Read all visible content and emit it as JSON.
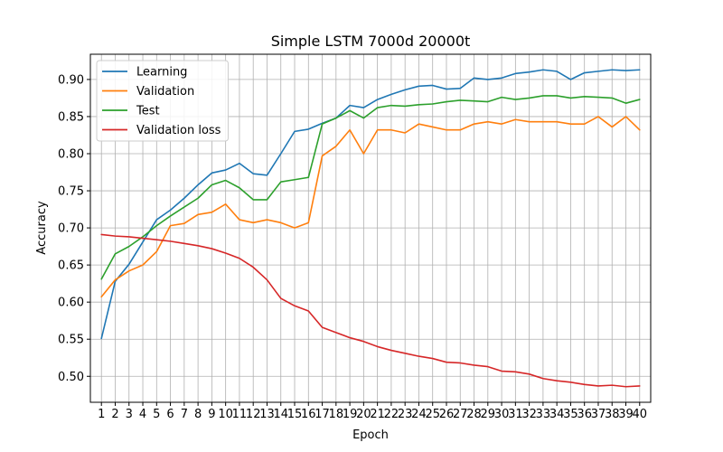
{
  "chart_data": {
    "type": "line",
    "title": "Simple LSTM 7000d 20000t",
    "xlabel": "Epoch",
    "ylabel": "Accuracy",
    "x": [
      1,
      2,
      3,
      4,
      5,
      6,
      7,
      8,
      9,
      10,
      11,
      12,
      13,
      14,
      15,
      16,
      17,
      18,
      19,
      20,
      21,
      22,
      23,
      24,
      25,
      26,
      27,
      28,
      29,
      30,
      31,
      32,
      33,
      34,
      35,
      36,
      37,
      38,
      39,
      40
    ],
    "xlim": [
      0.2,
      40.8
    ],
    "ylim": [
      0.465,
      0.934
    ],
    "yticks": [
      0.5,
      0.55,
      0.6,
      0.65,
      0.7,
      0.75,
      0.8,
      0.85,
      0.9
    ],
    "ytick_labels": [
      "0.50",
      "0.55",
      "0.60",
      "0.65",
      "0.70",
      "0.75",
      "0.80",
      "0.85",
      "0.90"
    ],
    "grid": true,
    "legend_position": "upper-left",
    "series": [
      {
        "name": "Learning",
        "color": "#1f77b4",
        "values": [
          0.551,
          0.628,
          0.651,
          0.681,
          0.711,
          0.724,
          0.74,
          0.758,
          0.774,
          0.778,
          0.787,
          0.773,
          0.771,
          0.8,
          0.83,
          0.833,
          0.841,
          0.848,
          0.865,
          0.862,
          0.873,
          0.88,
          0.886,
          0.891,
          0.892,
          0.887,
          0.888,
          0.902,
          0.9,
          0.902,
          0.908,
          0.91,
          0.913,
          0.911,
          0.9,
          0.909,
          0.911,
          0.913,
          0.912,
          0.913
        ]
      },
      {
        "name": "Validation",
        "color": "#ff7f0e",
        "values": [
          0.607,
          0.63,
          0.642,
          0.65,
          0.668,
          0.703,
          0.706,
          0.718,
          0.721,
          0.732,
          0.711,
          0.707,
          0.711,
          0.707,
          0.7,
          0.707,
          0.797,
          0.81,
          0.832,
          0.8,
          0.832,
          0.832,
          0.828,
          0.84,
          0.836,
          0.832,
          0.832,
          0.84,
          0.843,
          0.84,
          0.846,
          0.843,
          0.843,
          0.843,
          0.84,
          0.84,
          0.85,
          0.836,
          0.85,
          0.832
        ]
      },
      {
        "name": "Test",
        "color": "#2ca02c",
        "values": [
          0.631,
          0.665,
          0.675,
          0.688,
          0.703,
          0.716,
          0.728,
          0.74,
          0.758,
          0.764,
          0.754,
          0.738,
          0.738,
          0.762,
          0.765,
          0.768,
          0.84,
          0.848,
          0.858,
          0.848,
          0.862,
          0.865,
          0.864,
          0.866,
          0.867,
          0.87,
          0.872,
          0.871,
          0.87,
          0.876,
          0.873,
          0.875,
          0.878,
          0.878,
          0.875,
          0.877,
          0.876,
          0.875,
          0.868,
          0.873
        ]
      },
      {
        "name": "Validation loss",
        "color": "#d62728",
        "values": [
          0.691,
          0.689,
          0.688,
          0.686,
          0.684,
          0.682,
          0.679,
          0.676,
          0.672,
          0.666,
          0.659,
          0.647,
          0.63,
          0.605,
          0.595,
          0.588,
          0.566,
          0.559,
          0.552,
          0.547,
          0.54,
          0.535,
          0.531,
          0.527,
          0.524,
          0.519,
          0.518,
          0.515,
          0.513,
          0.507,
          0.506,
          0.503,
          0.497,
          0.494,
          0.492,
          0.489,
          0.487,
          0.488,
          0.486,
          0.487
        ]
      }
    ]
  }
}
